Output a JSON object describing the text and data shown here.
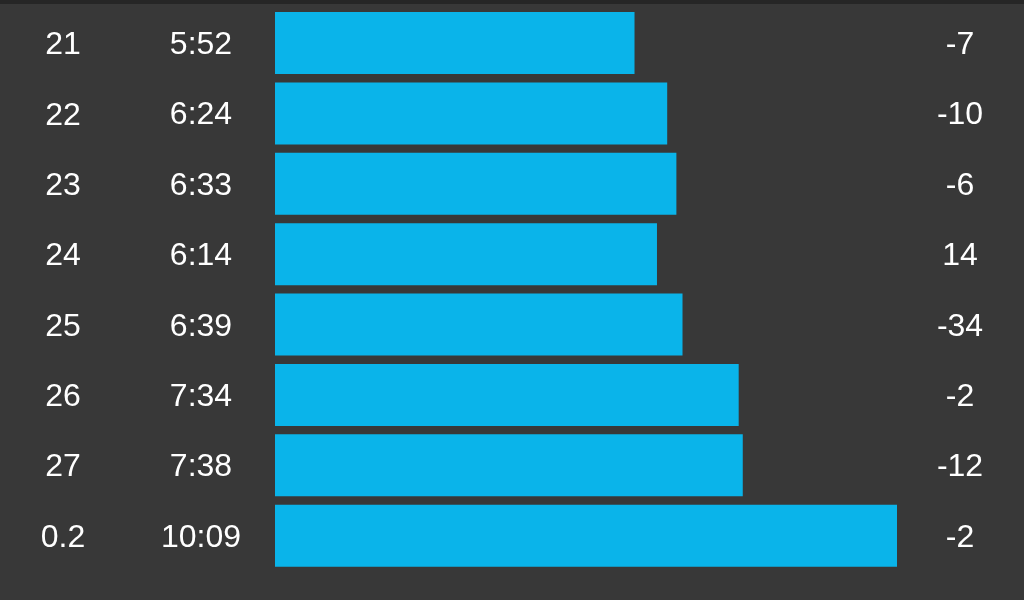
{
  "chart_data": {
    "type": "bar",
    "orientation": "horizontal",
    "categories": [
      "21",
      "22",
      "23",
      "24",
      "25",
      "26",
      "27",
      "0.2"
    ],
    "values": [
      5.8667,
      6.4,
      6.55,
      6.2333,
      6.65,
      7.5667,
      7.6333,
      10.15
    ],
    "value_labels": [
      "5:52",
      "6:24",
      "6:33",
      "6:14",
      "6:39",
      "7:34",
      "7:38",
      "10:09"
    ],
    "color": "#0ab4ea",
    "annotations": [
      "-7",
      "-10",
      "-6",
      "14",
      "-34",
      "-2",
      "-12",
      "-2"
    ]
  }
}
